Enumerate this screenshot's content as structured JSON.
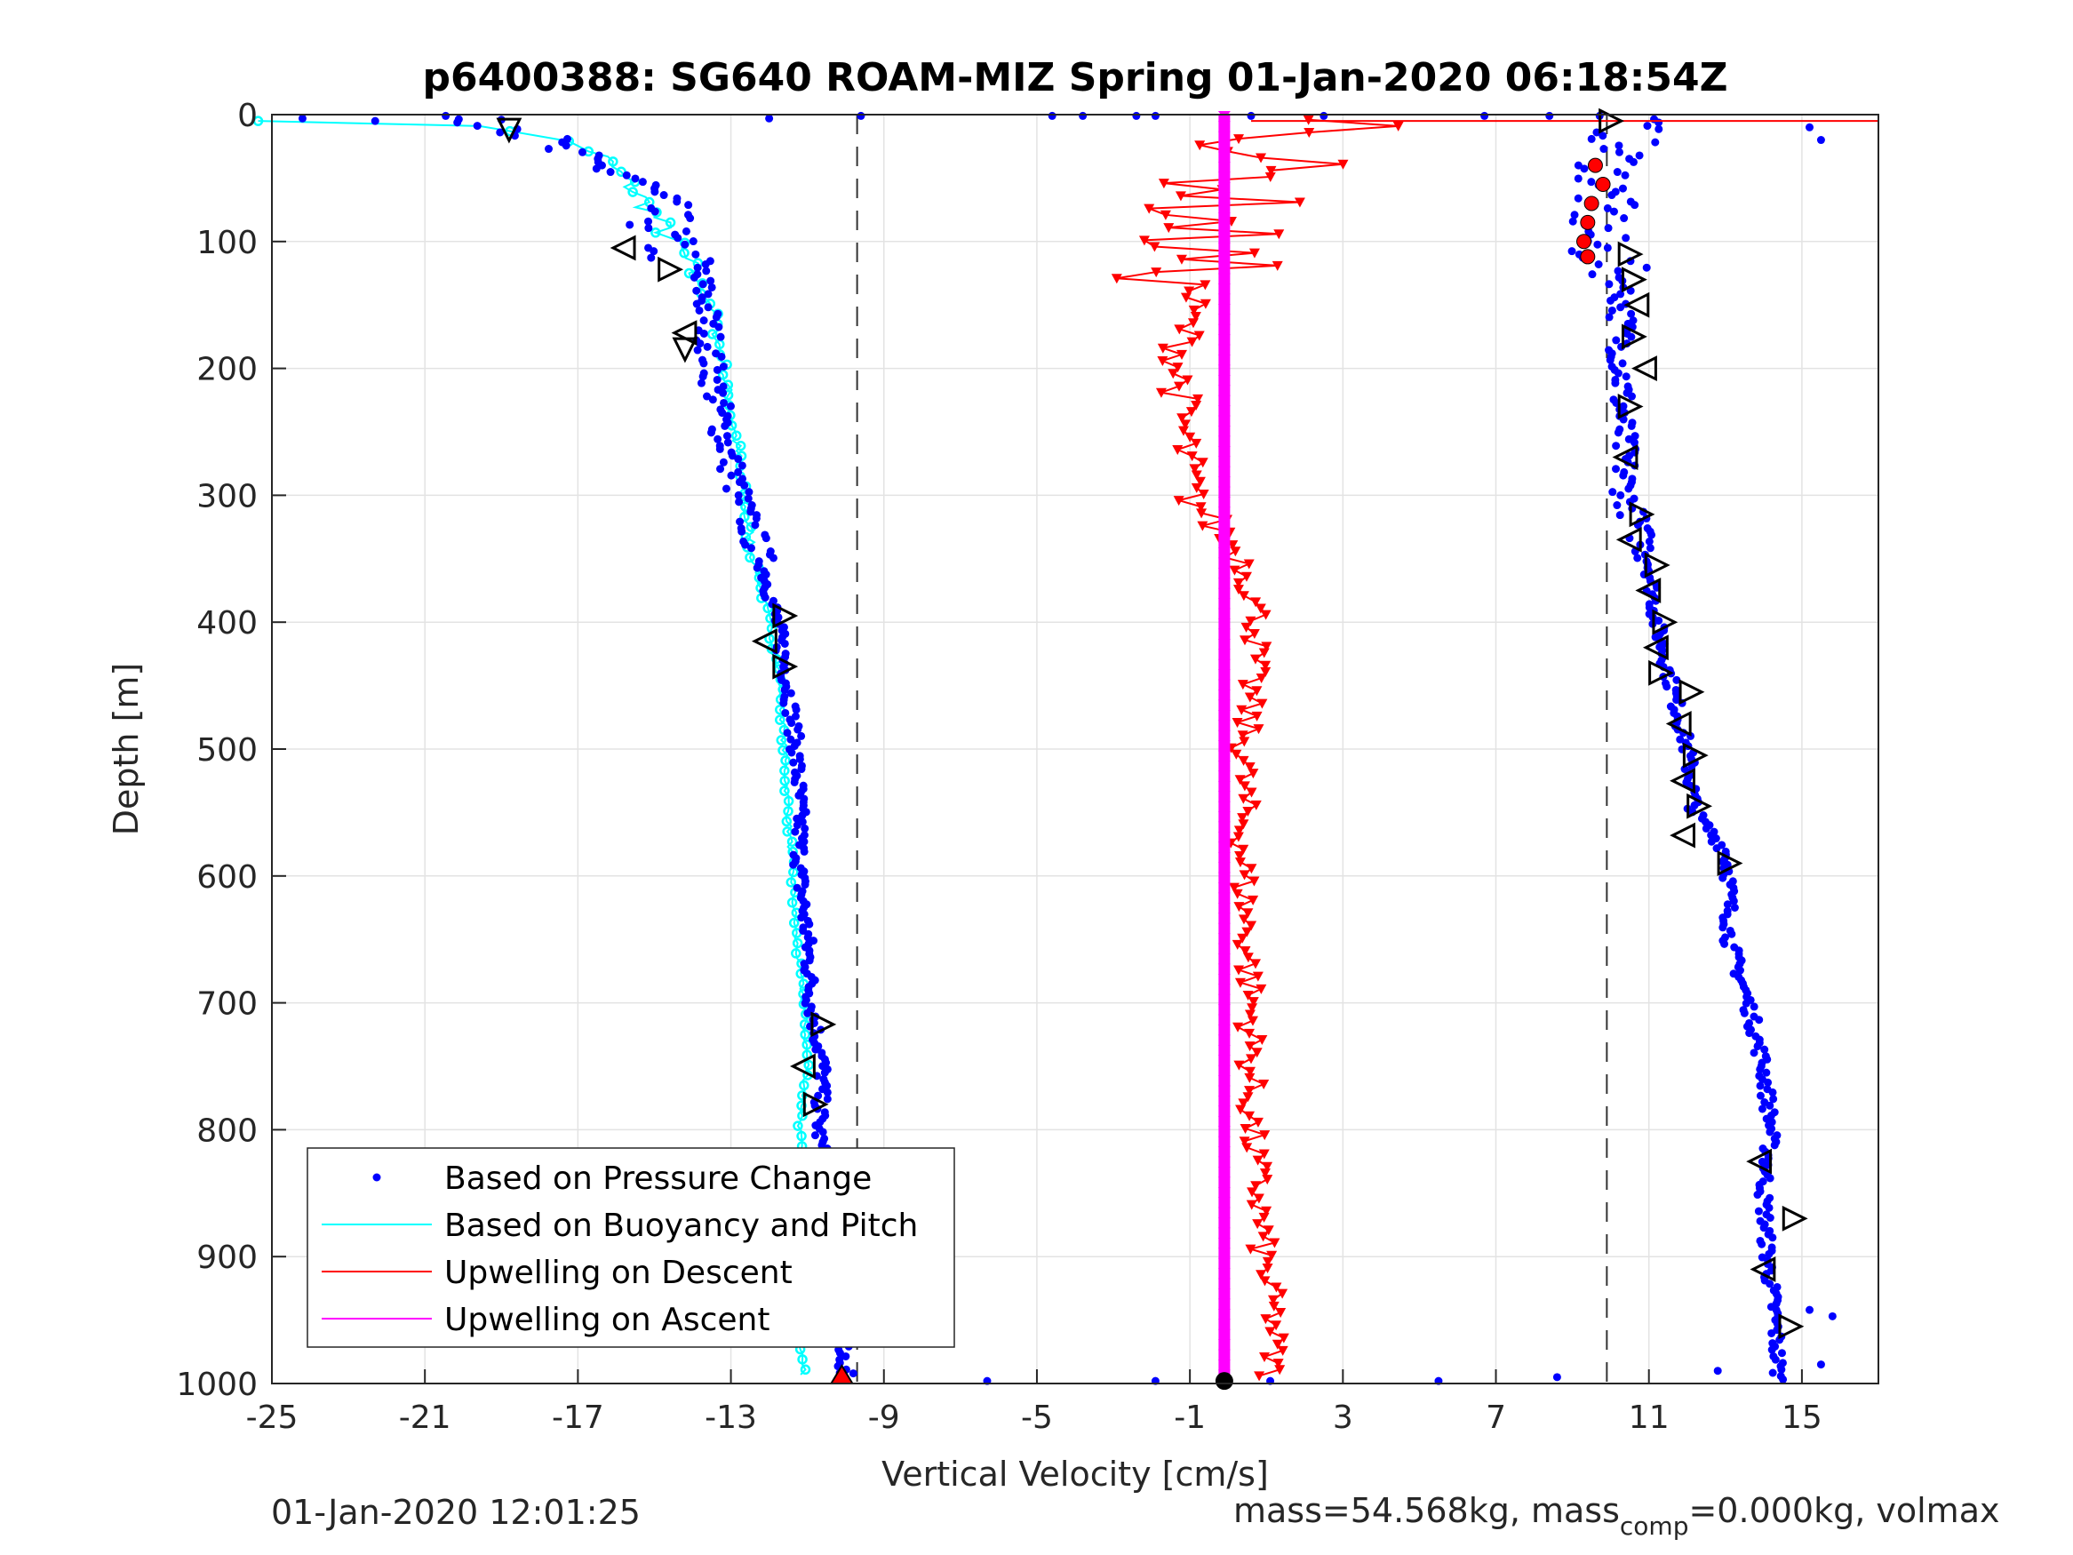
{
  "chart_data": {
    "type": "scatter",
    "title": "p6400388: SG640 ROAM-MIZ Spring 01-Jan-2020 06:18:54Z",
    "xlabel": "Vertical Velocity [cm/s]",
    "ylabel": "Depth [m]",
    "xlim": [
      -25,
      17
    ],
    "ylim": [
      0,
      1000
    ],
    "y_reversed": true,
    "grid": true,
    "x_ticks": [
      -25,
      -21,
      -17,
      -13,
      -9,
      -5,
      -1,
      3,
      7,
      11,
      15
    ],
    "y_ticks": [
      0,
      100,
      200,
      300,
      400,
      500,
      600,
      700,
      800,
      900,
      1000
    ],
    "x_tick_labels": [
      "-25",
      "-21",
      "-17",
      "-13",
      "-9",
      "-5",
      "-1",
      "3",
      "7",
      "11",
      "15"
    ],
    "y_tick_labels": [
      "0",
      "100",
      "200",
      "300",
      "400",
      "500",
      "600",
      "700",
      "800",
      "900",
      "1000"
    ],
    "vlines": [
      -9.7,
      9.9
    ],
    "legend_position": "bottom-left",
    "legend": [
      {
        "label": "Based on Pressure Change",
        "color": "#0000ff",
        "style": "dot"
      },
      {
        "label": "Based on Buoyancy and Pitch",
        "color": "#00ffff",
        "style": "line"
      },
      {
        "label": "Upwelling on Descent",
        "color": "#ff0000",
        "style": "line"
      },
      {
        "label": "Upwelling on Ascent",
        "color": "#ff00ff",
        "style": "line"
      }
    ],
    "series": [
      {
        "name": "Based on Pressure Change",
        "color": "#0000ff",
        "descent_profile": [
          [
            0,
            -20.5
          ],
          [
            10,
            -18.5
          ],
          [
            30,
            -17.5
          ],
          [
            50,
            -15.5
          ],
          [
            70,
            -15.0
          ],
          [
            100,
            -14.8
          ],
          [
            130,
            -13.8
          ],
          [
            160,
            -13.6
          ],
          [
            200,
            -13.5
          ],
          [
            250,
            -13.2
          ],
          [
            300,
            -12.8
          ],
          [
            350,
            -12.2
          ],
          [
            400,
            -11.8
          ],
          [
            450,
            -11.5
          ],
          [
            500,
            -11.3
          ],
          [
            550,
            -11.2
          ],
          [
            600,
            -11.2
          ],
          [
            650,
            -11.0
          ],
          [
            700,
            -10.9
          ],
          [
            750,
            -10.6
          ],
          [
            800,
            -10.7
          ],
          [
            850,
            -10.5
          ],
          [
            900,
            -10.3
          ],
          [
            950,
            -10.0
          ],
          [
            1000,
            -10.1
          ]
        ],
        "ascent_profile": [
          [
            0,
            10.6
          ],
          [
            50,
            9.9
          ],
          [
            100,
            9.5
          ],
          [
            130,
            10.3
          ],
          [
            200,
            10.3
          ],
          [
            250,
            10.3
          ],
          [
            300,
            10.4
          ],
          [
            350,
            11.0
          ],
          [
            400,
            11.2
          ],
          [
            450,
            11.6
          ],
          [
            500,
            12.0
          ],
          [
            550,
            12.2
          ],
          [
            580,
            13.0
          ],
          [
            600,
            13.1
          ],
          [
            650,
            13.1
          ],
          [
            700,
            13.6
          ],
          [
            750,
            14.0
          ],
          [
            800,
            14.2
          ],
          [
            850,
            14.0
          ],
          [
            900,
            14.1
          ],
          [
            950,
            14.3
          ],
          [
            1000,
            14.4
          ]
        ]
      },
      {
        "name": "Based on Buoyancy and Pitch",
        "color": "#00ffff",
        "profile": [
          [
            5,
            -25.0
          ],
          [
            7,
            -20.5
          ],
          [
            15,
            -18.0
          ],
          [
            30,
            -16.5
          ],
          [
            60,
            -15.5
          ],
          [
            80,
            -15.0
          ],
          [
            110,
            -14.3
          ],
          [
            150,
            -13.5
          ],
          [
            200,
            -13.2
          ],
          [
            250,
            -12.9
          ],
          [
            300,
            -12.7
          ],
          [
            350,
            -12.4
          ],
          [
            400,
            -12.0
          ],
          [
            450,
            -11.7
          ],
          [
            500,
            -11.6
          ],
          [
            550,
            -11.5
          ],
          [
            600,
            -11.4
          ],
          [
            650,
            -11.3
          ],
          [
            700,
            -11.1
          ],
          [
            750,
            -11.0
          ],
          [
            800,
            -11.2
          ],
          [
            850,
            -11.2
          ],
          [
            900,
            -11.2
          ],
          [
            950,
            -11.2
          ],
          [
            1000,
            -11.1
          ]
        ]
      },
      {
        "name": "Upwelling on Descent",
        "color": "#ff0000",
        "profile": [
          [
            0,
            5.0
          ],
          [
            20,
            1.5
          ],
          [
            50,
            0.5
          ],
          [
            80,
            -0.5
          ],
          [
            110,
            -0.8
          ],
          [
            150,
            -1.0
          ],
          [
            200,
            -1.3
          ],
          [
            250,
            -1.2
          ],
          [
            300,
            -1.0
          ],
          [
            350,
            0.4
          ],
          [
            400,
            0.8
          ],
          [
            450,
            0.6
          ],
          [
            500,
            0.4
          ],
          [
            550,
            0.4
          ],
          [
            600,
            0.4
          ],
          [
            650,
            0.5
          ],
          [
            700,
            0.6
          ],
          [
            750,
            0.6
          ],
          [
            800,
            0.6
          ],
          [
            850,
            0.8
          ],
          [
            900,
            0.9
          ],
          [
            950,
            1.2
          ],
          [
            1000,
            1.1
          ]
        ]
      },
      {
        "name": "Upwelling on Ascent",
        "color": "#ff00ff",
        "profile": [
          [
            0,
            -0.1
          ],
          [
            1000,
            -0.1
          ]
        ]
      }
    ]
  },
  "footer": {
    "timestamp": "01-Jan-2020 12:01:25",
    "mass_text": "mass=54.568kg, mass",
    "mass_sub": "comp",
    "mass_rest": "=0.000kg, volmax"
  }
}
